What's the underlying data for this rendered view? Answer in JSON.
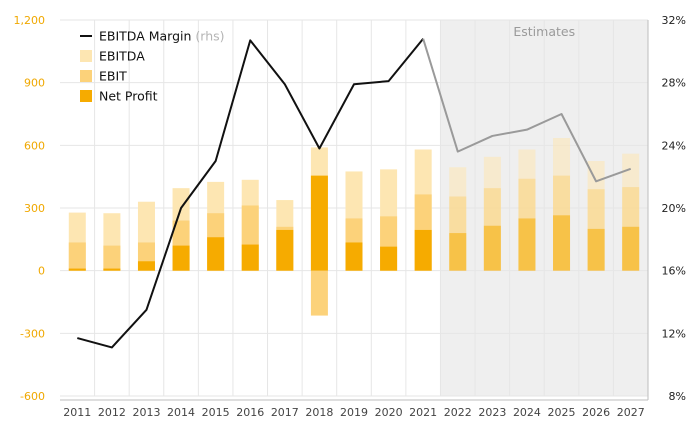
{
  "chart_data": {
    "type": "bar",
    "categories": [
      "2011",
      "2012",
      "2013",
      "2014",
      "2015",
      "2016",
      "2017",
      "2018",
      "2019",
      "2020",
      "2021",
      "2022",
      "2023",
      "2024",
      "2025",
      "2026",
      "2027"
    ],
    "estimates_from": "2022",
    "estimates_label": "Estimates",
    "series": [
      {
        "name": "EBITDA",
        "axis": "left",
        "color": "#fde6b2",
        "values": [
          278,
          275,
          330,
          395,
          425,
          435,
          338,
          590,
          475,
          485,
          580,
          495,
          545,
          580,
          635,
          525,
          560
        ]
      },
      {
        "name": "EBIT",
        "axis": "left",
        "color": "#fcd27a",
        "values": [
          135,
          120,
          135,
          240,
          275,
          312,
          210,
          -215,
          250,
          260,
          365,
          355,
          395,
          440,
          455,
          390,
          400
        ]
      },
      {
        "name": "Net Profit",
        "axis": "left",
        "color": "#f6ab00",
        "values": [
          10,
          10,
          45,
          120,
          160,
          125,
          195,
          455,
          135,
          115,
          195,
          180,
          215,
          250,
          265,
          200,
          210
        ]
      },
      {
        "name": "EBITDA Margin",
        "axis": "right",
        "type": "line",
        "color": "#111111",
        "estimate_color": "#9a9a9a",
        "values": [
          11.7,
          11.1,
          13.5,
          20.0,
          23.0,
          30.7,
          27.9,
          23.8,
          27.9,
          28.1,
          30.8,
          23.6,
          24.6,
          25.0,
          26.0,
          21.7,
          22.5
        ]
      }
    ],
    "legend": [
      {
        "label": "EBITDA Margin",
        "note": "(rhs)",
        "marker": "line",
        "color": "#111111"
      },
      {
        "label": "EBITDA",
        "marker": "box",
        "color": "#fde6b2"
      },
      {
        "label": "EBIT",
        "marker": "box",
        "color": "#fcd27a"
      },
      {
        "label": "Net Profit",
        "marker": "box",
        "color": "#f6ab00"
      }
    ],
    "ylim_left": [
      -600,
      1200
    ],
    "yticks_left": [
      "1,200",
      "900",
      "600",
      "300",
      "0",
      "-300",
      "-600"
    ],
    "ylim_right": [
      8,
      32
    ],
    "yticks_right": [
      "32%",
      "28%",
      "24%",
      "20%",
      "16%",
      "12%",
      "8%"
    ],
    "grid": true,
    "legend_position": "top-left",
    "colors": {
      "left_axis_text": "#f0a800",
      "grid": "#e6e6e6",
      "estimates_shade": "#efefef",
      "estimate_bar_opacity": "0.55"
    }
  }
}
